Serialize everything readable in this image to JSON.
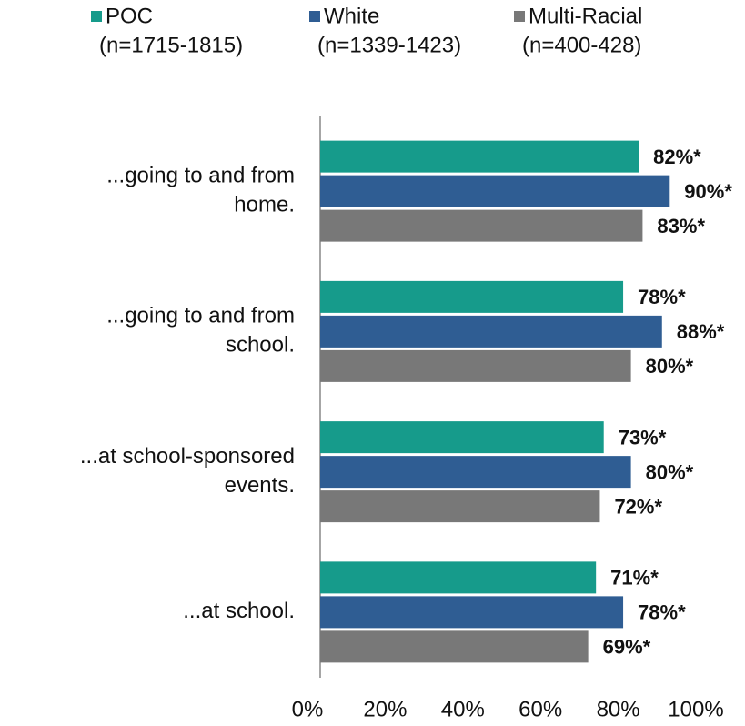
{
  "chart_data": {
    "type": "barh",
    "categories": [
      [
        "...going to and from",
        "home."
      ],
      [
        "...going to and from",
        "school."
      ],
      [
        "...at school-sponsored",
        "events."
      ],
      [
        "...at school."
      ]
    ],
    "series": [
      {
        "name": "POC",
        "sample": "(n=1715-1815)",
        "color": "#169b8b",
        "values": [
          82,
          78,
          73,
          71
        ],
        "value_labels": [
          "82%*",
          "78%*",
          "73%*",
          "71%*"
        ]
      },
      {
        "name": "White",
        "sample": "(n=1339-1423)",
        "color": "#2f5d93",
        "values": [
          90,
          88,
          80,
          78
        ],
        "value_labels": [
          "90%*",
          "88%*",
          "80%*",
          "78%*"
        ]
      },
      {
        "name": "Multi-Racial",
        "sample": "(n=400-428)",
        "color": "#787878",
        "values": [
          83,
          80,
          72,
          69
        ],
        "value_labels": [
          "83%*",
          "80%*",
          "72%*",
          "69%*"
        ]
      }
    ],
    "xlim": [
      0,
      100
    ],
    "xticks": [
      {
        "value": 0,
        "label": "0%"
      },
      {
        "value": 20,
        "label": "20%"
      },
      {
        "value": 40,
        "label": "40%"
      },
      {
        "value": 60,
        "label": "60%"
      },
      {
        "value": 80,
        "label": "80%"
      },
      {
        "value": 100,
        "label": "100%"
      }
    ],
    "legend": "top"
  }
}
